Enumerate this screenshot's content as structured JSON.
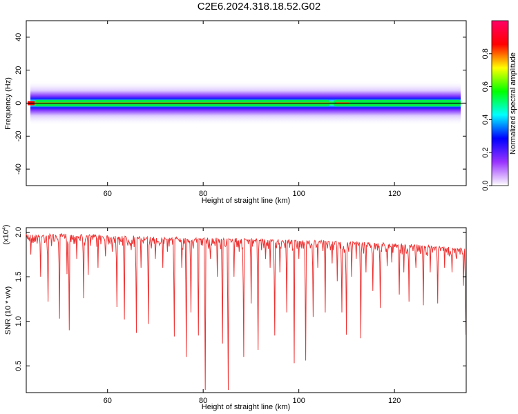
{
  "title": "C2E6.2024.318.18.52.G02",
  "chart_data": [
    {
      "type": "heatmap",
      "xlabel": "Height of straight line (km)",
      "ylabel": "Frequency (Hz)",
      "xlim": [
        43,
        135
      ],
      "ylim": [
        -50,
        50
      ],
      "xticks": [
        60,
        80,
        100,
        120
      ],
      "yticks": [
        40,
        20,
        0,
        -20,
        -40
      ],
      "band": {
        "center_frequency": 0,
        "core_halfwidth_hz": 2,
        "halo_halfwidth_hz": 5,
        "x_start": 43,
        "x_end": 135,
        "break_at_km": 107
      },
      "colorbar": {
        "label": "Normalized spectral amplitude",
        "range": [
          0,
          1
        ],
        "ticks": [
          "0.0",
          "0.2",
          "0.4",
          "0.6",
          "0.8"
        ],
        "colors": [
          "#ffffff",
          "#9933ff",
          "#0000ff",
          "#00ffff",
          "#00ff00",
          "#ffff00",
          "#ff0000",
          "#ff0066"
        ]
      },
      "line_color": "#000000",
      "grid": false
    },
    {
      "type": "line",
      "xlabel": "Height of straight line (km)",
      "ylabel": "SNR (10 * v/v)",
      "exponent_label": "(x10",
      "exponent_sup": "4",
      "exponent_close": ")",
      "xlim": [
        43,
        135
      ],
      "ylim": [
        0.2,
        2.05
      ],
      "xticks": [
        60,
        80,
        100,
        120
      ],
      "yticks": [
        "0.5",
        "1.0",
        "1.5",
        "2.0"
      ],
      "baseline": [
        [
          43,
          1.97
        ],
        [
          55,
          1.97
        ],
        [
          70,
          1.94
        ],
        [
          90,
          1.92
        ],
        [
          110,
          1.89
        ],
        [
          125,
          1.85
        ],
        [
          135,
          1.81
        ]
      ],
      "dips": [
        [
          44,
          1.75
        ],
        [
          46,
          1.5
        ],
        [
          47.5,
          1.22
        ],
        [
          50,
          1.03
        ],
        [
          51.5,
          1.53
        ],
        [
          52,
          0.9
        ],
        [
          53.5,
          1.7
        ],
        [
          55,
          1.26
        ],
        [
          56,
          1.52
        ],
        [
          58,
          1.6
        ],
        [
          59.5,
          1.73
        ],
        [
          61,
          1.78
        ],
        [
          62,
          1.16
        ],
        [
          63.5,
          1.02
        ],
        [
          65,
          1.8
        ],
        [
          66,
          0.87
        ],
        [
          67,
          1.6
        ],
        [
          68.5,
          0.97
        ],
        [
          70,
          1.7
        ],
        [
          71.5,
          1.6
        ],
        [
          72.5,
          1.78
        ],
        [
          74,
          0.83
        ],
        [
          75.5,
          1.6
        ],
        [
          76.5,
          0.6
        ],
        [
          77.5,
          1.1
        ],
        [
          79,
          0.84
        ],
        [
          79.8,
          1.85
        ],
        [
          80.5,
          0.23
        ],
        [
          81.5,
          1.7
        ],
        [
          83,
          1.5
        ],
        [
          84,
          0.75
        ],
        [
          85.3,
          0.23
        ],
        [
          86.5,
          1.5
        ],
        [
          87.5,
          1.78
        ],
        [
          88.5,
          0.6
        ],
        [
          90,
          1.2
        ],
        [
          91.5,
          0.68
        ],
        [
          93,
          1.7
        ],
        [
          94,
          1.6
        ],
        [
          95,
          0.84
        ],
        [
          96,
          1.55
        ],
        [
          97.5,
          1.1
        ],
        [
          99,
          0.53
        ],
        [
          100,
          1.7
        ],
        [
          101.5,
          0.56
        ],
        [
          103,
          1.05
        ],
        [
          104,
          1.6
        ],
        [
          105.5,
          1.1
        ],
        [
          107,
          1.65
        ],
        [
          108,
          1.45
        ],
        [
          109,
          1.1
        ],
        [
          110,
          0.85
        ],
        [
          111,
          1.5
        ],
        [
          112,
          1.7
        ],
        [
          113,
          0.81
        ],
        [
          114,
          1.55
        ],
        [
          115.5,
          1.34
        ],
        [
          117,
          1.15
        ],
        [
          118.5,
          1.62
        ],
        [
          119.5,
          1.66
        ],
        [
          121,
          1.3
        ],
        [
          122,
          1.55
        ],
        [
          123,
          1.22
        ],
        [
          124.5,
          1.6
        ],
        [
          126,
          1.18
        ],
        [
          127.5,
          1.55
        ],
        [
          129,
          1.2
        ],
        [
          130.5,
          1.6
        ],
        [
          132,
          1.55
        ],
        [
          134.5,
          1.4
        ],
        [
          134.9,
          0.85
        ]
      ],
      "line_color": "#ee3333",
      "grid": false
    }
  ]
}
